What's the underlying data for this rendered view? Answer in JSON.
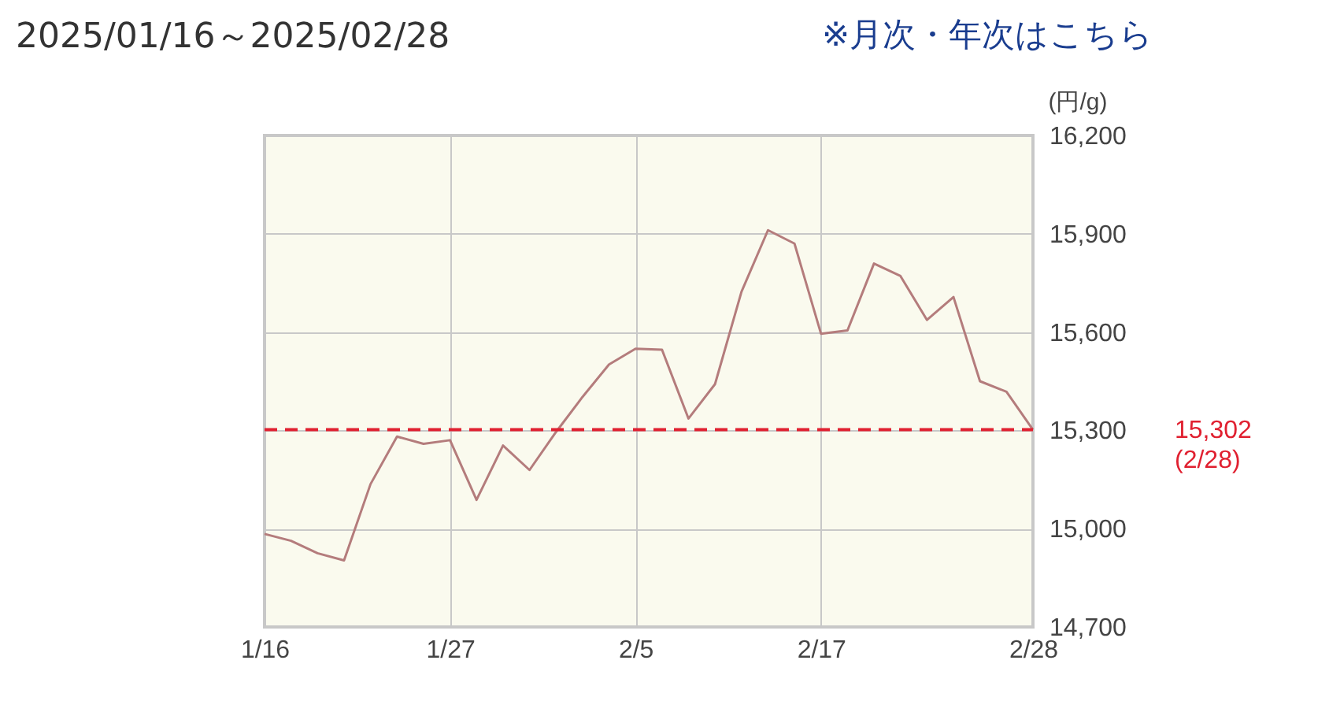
{
  "chart_data": {
    "type": "line",
    "title": "2025/01/16～2025/02/28",
    "annotations": [
      "※月次・年次はこちら"
    ],
    "ylabel": "(円/g)",
    "categories": [
      "1/16",
      null,
      null,
      null,
      null,
      null,
      null,
      "1/27",
      null,
      null,
      null,
      null,
      null,
      null,
      "2/5",
      null,
      null,
      null,
      null,
      null,
      null,
      "2/17",
      null,
      null,
      null,
      null,
      null,
      null,
      null,
      "2/28"
    ],
    "series": [
      {
        "color": "#b47c7c",
        "values": [
          14984,
          14963,
          14925,
          14903,
          15136,
          15281,
          15259,
          15270,
          15088,
          15254,
          15179,
          15295,
          15402,
          15501,
          15549,
          15546,
          15336,
          15441,
          15723,
          15911,
          15870,
          15595,
          15605,
          15809,
          15771,
          15637,
          15707,
          15450,
          15418,
          15302
        ]
      }
    ],
    "ylim": [
      14700,
      16200
    ],
    "yticks": [
      {
        "value": 14700,
        "label": "14,700"
      },
      {
        "value": 15000,
        "label": "15,000"
      },
      {
        "value": 15300,
        "label": "15,300"
      },
      {
        "value": 15600,
        "label": "15,600"
      },
      {
        "value": 15900,
        "label": "15,900"
      },
      {
        "value": 16200,
        "label": "16,200"
      }
    ],
    "grid": true,
    "marker": "none",
    "line_style": "solid",
    "ref_lines": [
      {
        "axis": "y",
        "value": 15302,
        "label": "15,302\n(2/28)",
        "color": "#e02030",
        "line_style": "dashed"
      }
    ]
  }
}
